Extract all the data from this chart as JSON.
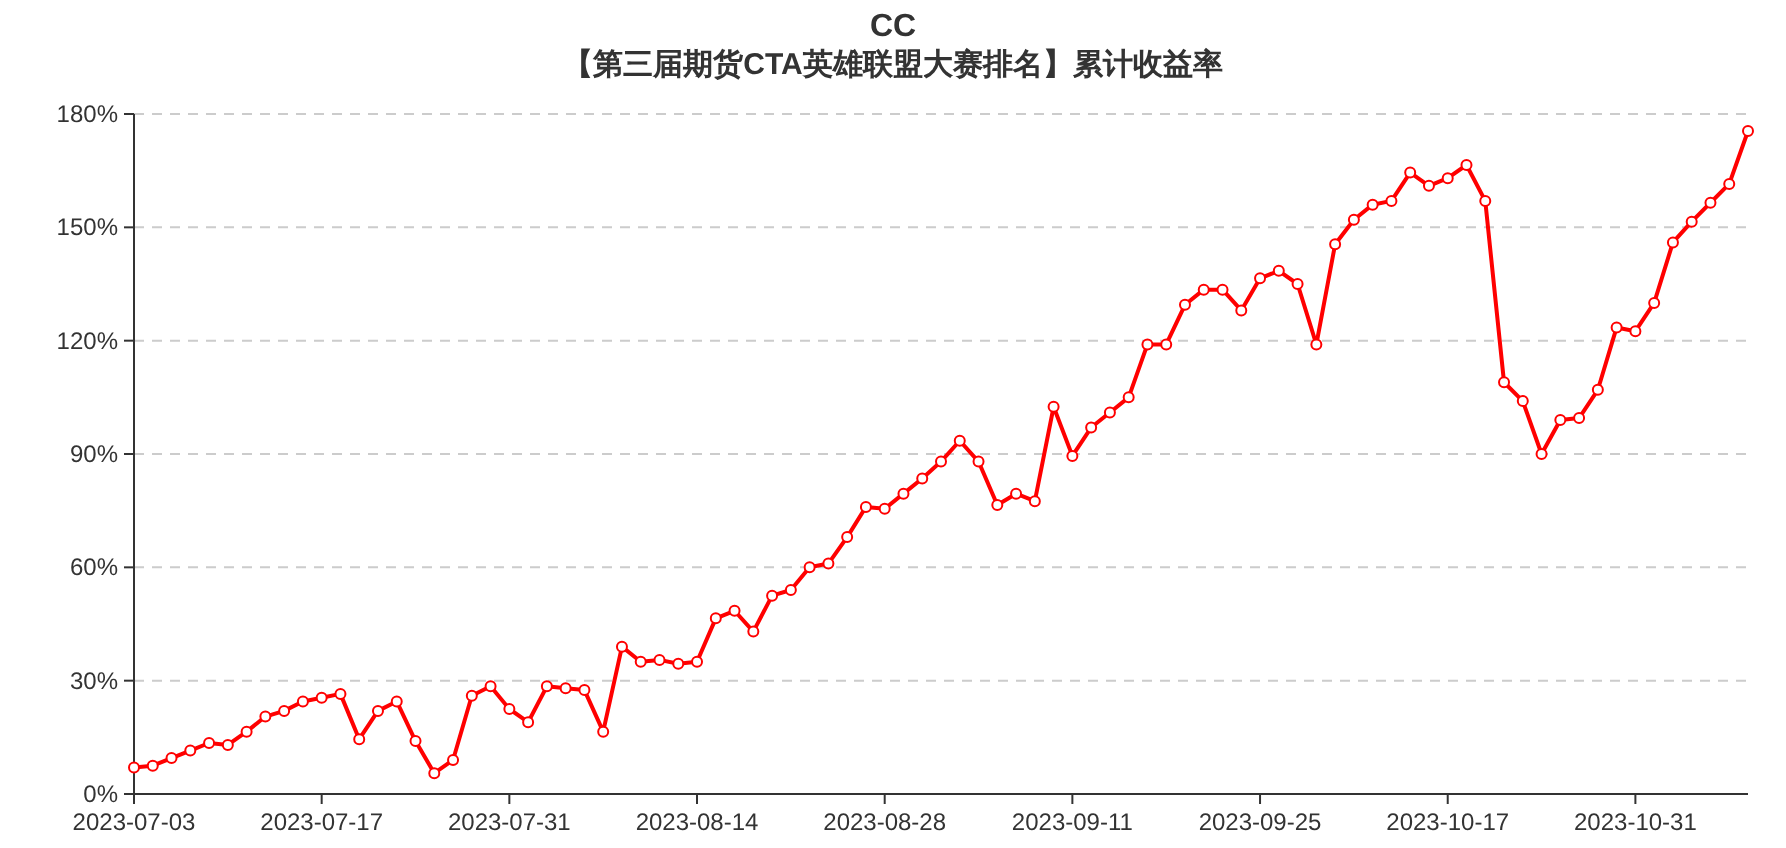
{
  "chart_data": {
    "type": "line",
    "title": "CC",
    "subtitle": "【第三届期货CTA英雄联盟大赛排名】累计收益率",
    "categories": [
      "2023-07-03",
      null,
      null,
      null,
      null,
      null,
      null,
      null,
      null,
      null,
      "2023-07-17",
      null,
      null,
      null,
      null,
      null,
      null,
      null,
      null,
      null,
      "2023-07-31",
      null,
      null,
      null,
      null,
      null,
      null,
      null,
      null,
      null,
      "2023-08-14",
      null,
      null,
      null,
      null,
      null,
      null,
      null,
      null,
      null,
      "2023-08-28",
      null,
      null,
      null,
      null,
      null,
      null,
      null,
      null,
      null,
      "2023-09-11",
      null,
      null,
      null,
      null,
      null,
      null,
      null,
      null,
      null,
      "2023-09-25",
      null,
      null,
      null,
      null,
      null,
      null,
      null,
      null,
      null,
      "2023-10-17",
      null,
      null,
      null,
      null,
      null,
      null,
      null,
      null,
      null,
      "2023-10-31",
      null,
      null,
      null,
      null,
      null,
      null
    ],
    "series": [
      {
        "color": "#ff0000",
        "values": [
          7,
          7.5,
          9.5,
          11.5,
          13.5,
          13,
          16.5,
          20.5,
          22,
          24.5,
          25.5,
          26.5,
          14.5,
          22,
          24.5,
          14,
          5.5,
          9,
          26,
          28.5,
          22.5,
          19,
          28.5,
          28,
          27.5,
          16.5,
          39,
          35,
          35.5,
          34.5,
          35,
          46.5,
          48.5,
          43,
          52.5,
          54,
          60,
          61,
          68,
          76,
          75.5,
          79.5,
          83.5,
          88,
          93.5,
          88,
          76.5,
          79.5,
          77.5,
          102.5,
          89.5,
          97,
          101,
          105,
          119,
          119,
          129.5,
          133.5,
          133.5,
          128,
          136.5,
          138.5,
          135,
          119,
          145.5,
          152,
          156,
          157,
          164.5,
          161,
          163,
          166.5,
          157,
          109,
          104,
          90,
          99,
          99.5,
          107,
          123.5,
          122.5,
          130,
          146,
          151.5,
          156.5,
          161.5,
          175.5
        ]
      }
    ],
    "ylim": [
      0,
      180
    ],
    "yticks": [
      {
        "value": 0,
        "label": "0%"
      },
      {
        "value": 30,
        "label": "30%"
      },
      {
        "value": 60,
        "label": "60%"
      },
      {
        "value": 90,
        "label": "90%"
      },
      {
        "value": 120,
        "label": "120%"
      },
      {
        "value": 150,
        "label": "150%"
      },
      {
        "value": 180,
        "label": "180%"
      }
    ],
    "grid": "y",
    "marker": "circle",
    "line_style": "solid"
  }
}
